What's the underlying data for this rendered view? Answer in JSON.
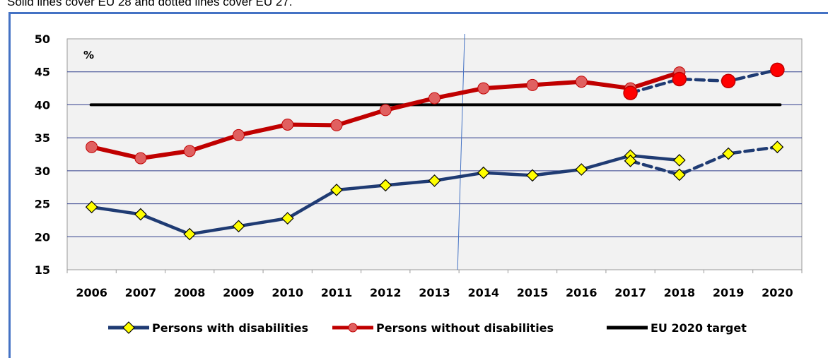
{
  "caption": "Solid lines cover EU 28 and dotted lines cover EU 27.",
  "chart_data": {
    "type": "line",
    "unit_label": "%",
    "ylim": [
      15,
      50
    ],
    "yticks": [
      15,
      20,
      25,
      30,
      35,
      40,
      45,
      50
    ],
    "categories": [
      "2006",
      "2007",
      "2008",
      "2009",
      "2010",
      "2011",
      "2012",
      "2013",
      "2014",
      "2015",
      "2016",
      "2017",
      "2018",
      "2019",
      "2020"
    ],
    "grid": "horizontal",
    "legend_position": "bottom",
    "series": [
      {
        "name": "Persons with disabilities",
        "coverage": "EU 28",
        "style": "solid",
        "color": "#1f3b73",
        "marker": "diamond",
        "marker_color": "#ffff00",
        "values": [
          24.5,
          23.4,
          20.4,
          21.6,
          22.8,
          27.1,
          27.8,
          28.5,
          29.7,
          29.3,
          30.2,
          32.3,
          31.6,
          null,
          null
        ]
      },
      {
        "name": "Persons with disabilities",
        "coverage": "EU 27",
        "style": "dotted",
        "color": "#1f3b73",
        "marker": "diamond",
        "marker_color": "#ffff00",
        "values": [
          null,
          null,
          null,
          null,
          null,
          null,
          null,
          null,
          null,
          null,
          null,
          31.5,
          29.4,
          32.6,
          33.6
        ]
      },
      {
        "name": "Persons without disabilities",
        "coverage": "EU 28",
        "style": "solid",
        "color": "#c00000",
        "marker": "circle",
        "marker_color": "#e06060",
        "values": [
          33.6,
          31.9,
          33.0,
          35.4,
          37.0,
          36.9,
          39.2,
          41.0,
          42.5,
          43.0,
          43.5,
          42.5,
          44.9,
          null,
          null
        ]
      },
      {
        "name": "Persons without disabilities",
        "coverage": "EU 27",
        "style": "dotted",
        "color": "#1f3b73",
        "marker": "circle",
        "marker_color": "#ff0000",
        "values": [
          null,
          null,
          null,
          null,
          null,
          null,
          null,
          null,
          null,
          null,
          null,
          41.8,
          43.9,
          43.6,
          45.3
        ]
      },
      {
        "name": "EU 2020 target",
        "style": "solid",
        "color": "#000000",
        "marker": "none",
        "values": [
          40,
          40,
          40,
          40,
          40,
          40,
          40,
          40,
          40,
          40,
          40,
          40,
          40,
          40,
          40
        ]
      }
    ],
    "legend": [
      {
        "label": "Persons with disabilities",
        "color": "#1f3b73",
        "marker": "diamond",
        "marker_color": "#ffff00"
      },
      {
        "label": "Persons without disabilities",
        "color": "#c00000",
        "marker": "circle",
        "marker_color": "#e06060"
      },
      {
        "label": "EU 2020 target",
        "color": "#000000",
        "marker": "none"
      }
    ],
    "separator_after": "2013",
    "separator_color": "#4472c4"
  }
}
